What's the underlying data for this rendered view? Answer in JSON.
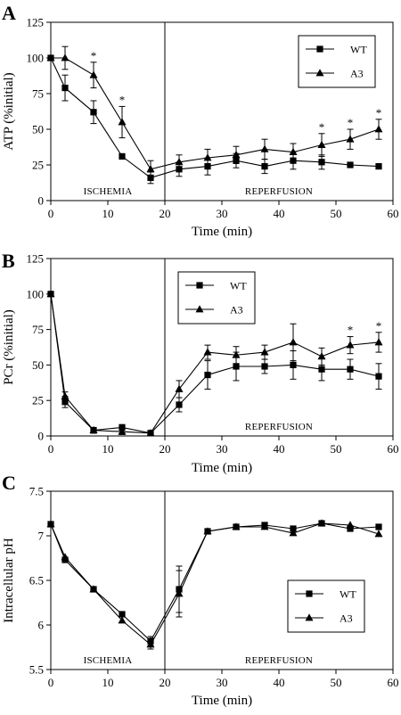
{
  "colors": {
    "ink": "#000000",
    "background": "#ffffff"
  },
  "chart_data": [
    {
      "type": "line",
      "panel": "A",
      "xlabel": "Time (min)",
      "ylabel": "ATP (%initial)",
      "xlim": [
        0,
        60
      ],
      "ylim": [
        0,
        125
      ],
      "xticks": [
        0,
        10,
        20,
        30,
        40,
        50,
        60
      ],
      "yticks": [
        0,
        25,
        50,
        75,
        100,
        125
      ],
      "divider_x": 20,
      "regions": [
        "ISCHEMIA",
        "REPERFUSION"
      ],
      "legend": {
        "placement": "top-right",
        "entries": [
          "WT",
          "A3"
        ]
      },
      "series": [
        {
          "name": "WT",
          "marker": "square",
          "x": [
            0,
            2.5,
            7.5,
            12.5,
            17.5,
            22.5,
            27.5,
            32.5,
            37.5,
            42.5,
            47.5,
            52.5,
            57.5
          ],
          "y": [
            100,
            79,
            62,
            31,
            16,
            22,
            24,
            28,
            24,
            28,
            27,
            25,
            24
          ],
          "err": [
            0,
            9,
            8,
            0,
            4,
            5,
            6,
            5,
            5,
            6,
            5,
            0,
            0
          ]
        },
        {
          "name": "A3",
          "marker": "triangle",
          "x": [
            0,
            2.5,
            7.5,
            12.5,
            17.5,
            22.5,
            27.5,
            32.5,
            37.5,
            42.5,
            47.5,
            52.5,
            57.5
          ],
          "y": [
            100,
            100,
            88,
            55,
            22,
            27,
            30,
            32,
            36,
            34,
            39,
            43,
            50
          ],
          "err": [
            0,
            8,
            9,
            11,
            6,
            5,
            6,
            6,
            7,
            6,
            8,
            7,
            7
          ]
        }
      ],
      "significance_x": [
        7.5,
        12.5,
        47.5,
        52.5,
        57.5
      ],
      "significance_mark": "*"
    },
    {
      "type": "line",
      "panel": "B",
      "xlabel": "Time (min)",
      "ylabel": "PCr (%initial)",
      "xlim": [
        0,
        60
      ],
      "ylim": [
        0,
        125
      ],
      "xticks": [
        0,
        10,
        20,
        30,
        40,
        50,
        60
      ],
      "yticks": [
        0,
        25,
        50,
        75,
        100,
        125
      ],
      "divider_x": 20,
      "regions": [
        "",
        "REPERFUSION"
      ],
      "legend": {
        "placement": "top-center",
        "entries": [
          "WT",
          "A3"
        ]
      },
      "series": [
        {
          "name": "WT",
          "marker": "square",
          "x": [
            0,
            2.5,
            7.5,
            12.5,
            17.5,
            22.5,
            27.5,
            32.5,
            37.5,
            42.5,
            47.5,
            52.5,
            57.5
          ],
          "y": [
            100,
            24,
            4,
            6,
            2,
            22,
            43,
            49,
            49,
            50,
            47,
            47,
            42
          ],
          "err": [
            0,
            4,
            2,
            2,
            1,
            5,
            10,
            10,
            5,
            10,
            8,
            7,
            9
          ]
        },
        {
          "name": "A3",
          "marker": "triangle",
          "x": [
            0,
            2.5,
            7.5,
            12.5,
            17.5,
            22.5,
            27.5,
            32.5,
            37.5,
            42.5,
            47.5,
            52.5,
            57.5
          ],
          "y": [
            100,
            28,
            4,
            3,
            2,
            33,
            59,
            57,
            59,
            66,
            56,
            64,
            66
          ],
          "err": [
            0,
            3,
            2,
            2,
            1,
            6,
            5,
            6,
            5,
            13,
            6,
            6,
            7
          ]
        }
      ],
      "significance_x": [
        52.5,
        57.5
      ],
      "significance_mark": "*"
    },
    {
      "type": "line",
      "panel": "C",
      "xlabel": "Time (min)",
      "ylabel": "Intracellular pH",
      "xlim": [
        0,
        60
      ],
      "ylim": [
        5.5,
        7.5
      ],
      "xticks": [
        0,
        10,
        20,
        30,
        40,
        50,
        60
      ],
      "yticks": [
        "5.5",
        "6",
        "6.5",
        "7",
        "7.5"
      ],
      "divider_x": 20,
      "regions": [
        "ISCHEMIA",
        "REPERFUSION"
      ],
      "legend": {
        "placement": "bottom-right",
        "entries": [
          "WT",
          "A3"
        ]
      },
      "series": [
        {
          "name": "WT",
          "marker": "square",
          "x": [
            0,
            2.5,
            7.5,
            12.5,
            17.5,
            22.5,
            27.5,
            32.5,
            37.5,
            42.5,
            47.5,
            52.5,
            57.5
          ],
          "y": [
            7.13,
            6.73,
            6.4,
            6.12,
            5.82,
            6.4,
            7.05,
            7.1,
            7.12,
            7.08,
            7.14,
            7.08,
            7.1
          ],
          "err": [
            0,
            0,
            0,
            0,
            0.05,
            0.26,
            0,
            0,
            0,
            0,
            0,
            0,
            0
          ]
        },
        {
          "name": "A3",
          "marker": "triangle",
          "x": [
            0,
            2.5,
            7.5,
            12.5,
            17.5,
            22.5,
            27.5,
            32.5,
            37.5,
            42.5,
            47.5,
            52.5,
            57.5
          ],
          "y": [
            7.13,
            6.76,
            6.4,
            6.05,
            5.78,
            6.35,
            7.05,
            7.1,
            7.1,
            7.03,
            7.14,
            7.12,
            7.02
          ],
          "err": [
            0,
            0,
            0,
            0,
            0.05,
            0.26,
            0,
            0,
            0,
            0,
            0,
            0,
            0
          ]
        }
      ],
      "significance_x": [],
      "significance_mark": "*"
    }
  ]
}
